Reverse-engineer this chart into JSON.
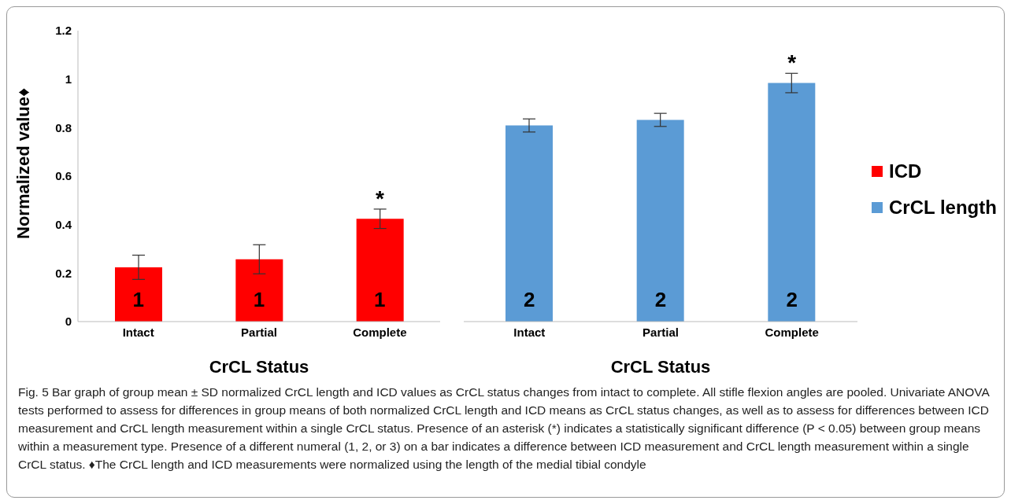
{
  "chart_data": [
    {
      "type": "bar",
      "ylabel": "Normalized value♦",
      "xlabel": "CrCL Status",
      "categories": [
        "Intact",
        "Partial",
        "Complete"
      ],
      "series": [
        {
          "name": "ICD",
          "color": "#ff0000",
          "values": [
            0.224,
            0.257,
            0.424
          ],
          "errors": [
            0.05,
            0.06,
            0.04
          ]
        }
      ],
      "ylim": [
        0,
        1.2
      ],
      "yticks": [
        0,
        0.2,
        0.4,
        0.6,
        0.8,
        1,
        1.2
      ],
      "legend": "right",
      "annotations": [
        "1",
        "1",
        "1",
        {
          "text": "*",
          "x": "Complete",
          "y": 0.464
        },
        "Fig. 5 Bar graph of group mean ± SD normalized CrCL length and ICD values as CrCL status changes from intact to complete. All stifle flexion angles are pooled. Univariate ANOVA tests performed to assess for differences in group means of both normalized CrCL length and ICD means as CrCL status changes, as well as to assess for differences between ICD measurement and CrCL length measurement within a single CrCL status. Presence of an asterisk (*) indicates a statistically significant difference (P < 0.05) between group means within a measurement type. Presence of a different numeral (1, 2, or 3) on a bar indicates a difference between ICD measurement and CrCL length measurement within a single CrCL status. ♦The CrCL length and ICD measurements were normalized using the length of the medial tibial condyle"
      ]
    },
    {
      "type": "bar",
      "xlabel": "CrCL Status",
      "categories": [
        "Intact",
        "Partial",
        "Complete"
      ],
      "series": [
        {
          "name": "CrCL length",
          "color": "#5b9bd5",
          "values": [
            0.809,
            0.832,
            0.984
          ],
          "errors": [
            0.027,
            0.027,
            0.04
          ]
        }
      ],
      "ylim": [
        0,
        1.2
      ],
      "tick_labels": "x",
      "legend": "right",
      "annotations": [
        "2",
        "2",
        "2",
        {
          "text": "*",
          "x": "Complete",
          "y": 1.024
        }
      ]
    }
  ]
}
